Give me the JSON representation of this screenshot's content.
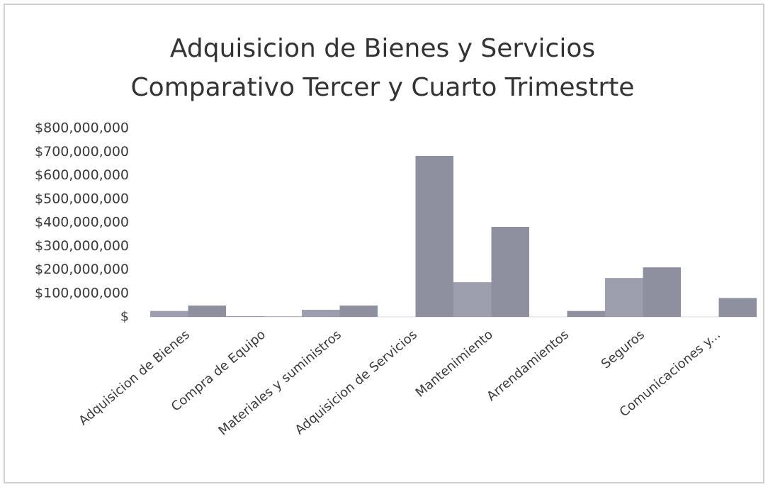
{
  "chart_data": {
    "type": "bar",
    "title": "Adquisicion de Bienes y Servicios",
    "subtitle": "Comparativo Tercer y Cuarto Trimestrte",
    "categories": [
      "Adquisicion de Bienes",
      "Compra de Equipo",
      "Materiales y suministros",
      "Adquisicion de Servicios",
      "Mantenimiento",
      "Arrendamientos",
      "Seguros",
      "Comunicaciones y..."
    ],
    "series": [
      {
        "color": "#9c9eae",
        "values": [
          25000000,
          3000000,
          30000000,
          0,
          147000000,
          0,
          165000000,
          0
        ]
      },
      {
        "color": "#8e8f9f",
        "values": [
          48000000,
          2000000,
          48000000,
          683000000,
          382000000,
          25000000,
          210000000,
          80000000
        ]
      }
    ],
    "ylim": [
      0,
      800000000
    ],
    "yticks": [
      {
        "value": 0,
        "label": "$"
      },
      {
        "value": 100000000,
        "label": "$100,000,000"
      },
      {
        "value": 200000000,
        "label": "$200,000,000"
      },
      {
        "value": 300000000,
        "label": "$300,000,000"
      },
      {
        "value": 400000000,
        "label": "$400,000,000"
      },
      {
        "value": 500000000,
        "label": "$500,000,000"
      },
      {
        "value": 600000000,
        "label": "$600,000,000"
      },
      {
        "value": 700000000,
        "label": "$700,000,000"
      },
      {
        "value": 800000000,
        "label": "$800,000,000"
      }
    ],
    "grid": false
  }
}
